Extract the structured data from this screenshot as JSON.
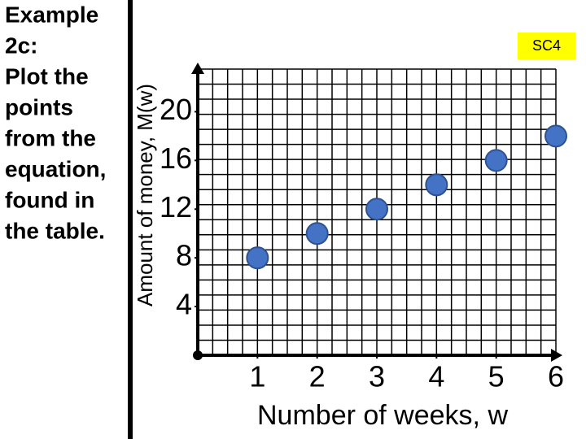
{
  "chart_data": {
    "type": "scatter",
    "title": [
      "Example",
      "2c:",
      "Plot the",
      "points",
      "from the",
      "equation,",
      "found in",
      "the table."
    ],
    "badge": "SC4",
    "x_label": "Number of weeks, w",
    "y_label": "Amount of money, M(w)",
    "x": [
      1,
      2,
      3,
      4,
      5,
      6
    ],
    "values": [
      8,
      10,
      12,
      14,
      16,
      18
    ],
    "color": "#4472c4",
    "xlim": [
      0,
      6
    ],
    "ylim": [
      0,
      23.5
    ],
    "xticks": [
      1,
      2,
      3,
      4,
      5,
      6
    ],
    "yticks": [
      4,
      8,
      12,
      16,
      20
    ],
    "grid": true
  }
}
